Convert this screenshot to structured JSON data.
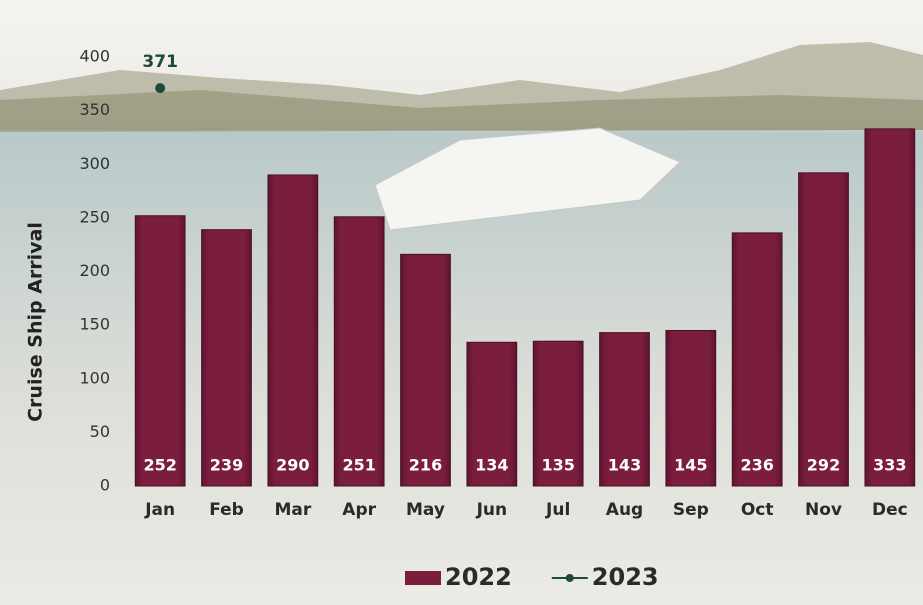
{
  "chart_data": {
    "type": "bar",
    "y_label": "Cruise Ship Arrival",
    "categories": [
      "Jan",
      "Feb",
      "Mar",
      "Apr",
      "May",
      "Jun",
      "Jul",
      "Aug",
      "Sep",
      "Oct",
      "Nov",
      "Dec"
    ],
    "series": [
      {
        "name": "2022",
        "color": "#7b1e3e",
        "type": "bar",
        "values": [
          252,
          239,
          290,
          251,
          216,
          134,
          135,
          143,
          145,
          236,
          292,
          333
        ]
      },
      {
        "name": "2023",
        "color": "#1d4a3b",
        "type": "line",
        "values": [
          371,
          null,
          null,
          null,
          null,
          null,
          null,
          null,
          null,
          null,
          null,
          null
        ]
      }
    ],
    "ylim": [
      0,
      400
    ],
    "yticks": [
      0,
      50,
      100,
      150,
      200,
      250,
      300,
      350,
      400
    ],
    "legend": "bottom"
  }
}
